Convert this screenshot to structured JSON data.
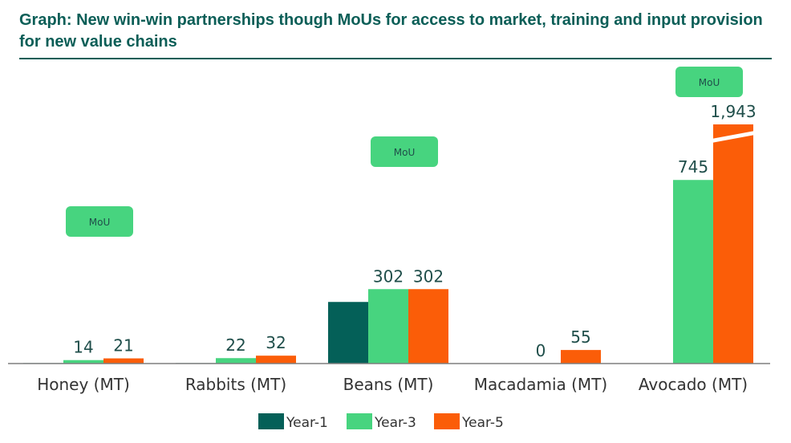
{
  "title": "Graph: New win-win partnerships though MoUs for access to market, training and input provision for new value chains",
  "colors": {
    "title": "#0b5e57",
    "year1": "#046058",
    "year3": "#47d47f",
    "year5": "#fb5d08",
    "badge": "#47d47f"
  },
  "chart_data": {
    "type": "bar",
    "title": "Graph: New win-win partnerships though MoUs for access to market, training and input provision for new value chains",
    "categories": [
      "Honey (MT)",
      "Rabbits (MT)",
      "Beans (MT)",
      "Macadamia (MT)",
      "Avocado (MT)"
    ],
    "series": [
      {
        "name": "Year-1",
        "color": "#046058",
        "values": [
          2,
          2,
          250,
          null,
          null
        ],
        "labels": [
          "",
          "",
          "",
          "",
          ""
        ]
      },
      {
        "name": "Year-3",
        "color": "#47d47f",
        "values": [
          14,
          22,
          302,
          0,
          745
        ],
        "labels": [
          "14",
          "22",
          "302",
          "0",
          "745"
        ]
      },
      {
        "name": "Year-5",
        "color": "#fb5d08",
        "values": [
          21,
          32,
          302,
          55,
          1943
        ],
        "labels": [
          "21",
          "32",
          "302",
          "55",
          "1,943"
        ]
      }
    ],
    "axis_break": {
      "category": "Avocado (MT)",
      "series": "Year-5"
    },
    "ylim": [
      0,
      800
    ],
    "grid": false,
    "legend_position": "bottom",
    "annotations": [
      {
        "text": "MoU",
        "category": "Honey (MT)"
      },
      {
        "text": "MoU",
        "category": "Beans (MT)"
      },
      {
        "text": "MoU",
        "category": "Avocado (MT)"
      }
    ]
  }
}
